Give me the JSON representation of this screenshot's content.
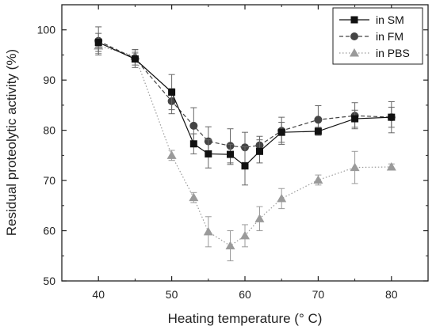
{
  "chart_data": {
    "type": "line",
    "xlabel": "Heating temperature (° C)",
    "ylabel": "Residual proteolytic activity (%)",
    "xlim": [
      35,
      85
    ],
    "ylim": [
      50,
      105
    ],
    "x_ticks": [
      40,
      50,
      60,
      70,
      80
    ],
    "y_ticks": [
      50,
      60,
      70,
      80,
      90,
      100
    ],
    "grid": false,
    "legend_position": "top-right",
    "series": [
      {
        "name": "in SM",
        "color": "#111111",
        "line": "solid",
        "marker": "square",
        "x": [
          40,
          45,
          50,
          53,
          55,
          58,
          60,
          62,
          65,
          70,
          75,
          80
        ],
        "y": [
          97.5,
          94.2,
          87.6,
          77.3,
          75.3,
          75.2,
          72.9,
          75.8,
          79.6,
          79.8,
          82.3,
          82.6
        ],
        "err": [
          1.8,
          1.2,
          3.5,
          2.0,
          2.8,
          2.0,
          3.8,
          2.3,
          2.0,
          0.8,
          1.7,
          2.0
        ]
      },
      {
        "name": "in FM",
        "color": "#444444",
        "line": "dashed",
        "marker": "circle",
        "x": [
          40,
          45,
          50,
          53,
          55,
          58,
          60,
          62,
          65,
          70,
          75,
          80
        ],
        "y": [
          97.8,
          94.3,
          85.8,
          80.9,
          77.8,
          76.9,
          76.6,
          77.0,
          79.9,
          82.1,
          82.9,
          82.6
        ],
        "err": [
          2.8,
          1.8,
          2.5,
          3.6,
          2.9,
          3.4,
          3.0,
          1.8,
          2.7,
          2.8,
          2.6,
          3.1
        ]
      },
      {
        "name": "in PBS",
        "color": "#9a9a9a",
        "line": "dotted",
        "marker": "triangle",
        "x": [
          40,
          45,
          50,
          53,
          55,
          58,
          60,
          62,
          65,
          70,
          75,
          80
        ],
        "y": [
          96.8,
          94.8,
          75.0,
          66.6,
          59.8,
          57.0,
          59.0,
          62.4,
          66.4,
          70.1,
          72.6,
          72.7
        ],
        "err": [
          1.5,
          1.0,
          1.0,
          1.0,
          3.0,
          3.0,
          2.2,
          2.4,
          2.0,
          1.0,
          3.2,
          0.6
        ]
      }
    ]
  }
}
